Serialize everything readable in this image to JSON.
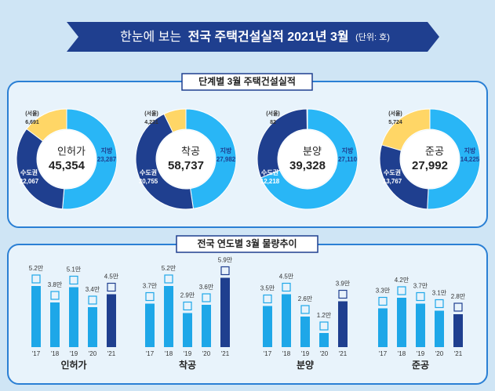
{
  "header": {
    "prefix": "한눈에 보는",
    "title": "전국 주택건설실적 2021년 3월",
    "unit": "(단위: 호)"
  },
  "sections": [
    {
      "title": "단계별 3월 주택건설실적"
    },
    {
      "title": "전국 연도별 3월 물량추이"
    }
  ],
  "chart_data": [
    {
      "type": "pie",
      "label": "인허가",
      "center_value": "45,354",
      "categories": [
        "지방",
        "수도권",
        "(서울)"
      ],
      "values": [
        23287,
        22067,
        6691
      ],
      "value_labels": [
        "23,287",
        "22,067",
        "6,691"
      ],
      "colors": [
        "#29b6f6",
        "#1f3f8f",
        "#ffd666"
      ]
    },
    {
      "type": "pie",
      "label": "착공",
      "center_value": "58,737",
      "categories": [
        "지방",
        "수도권",
        "(서울)"
      ],
      "values": [
        27982,
        30755,
        4231
      ],
      "value_labels": [
        "27,982",
        "30,755",
        "4,231"
      ],
      "colors": [
        "#29b6f6",
        "#1f3f8f",
        "#ffd666"
      ]
    },
    {
      "type": "pie",
      "label": "분양",
      "center_value": "39,328",
      "categories": [
        "지방",
        "수도권",
        "(서울)"
      ],
      "values": [
        27110,
        12218,
        82
      ],
      "value_labels": [
        "27,110",
        "12,218",
        "82"
      ],
      "colors": [
        "#29b6f6",
        "#1f3f8f",
        "#ffd666"
      ]
    },
    {
      "type": "pie",
      "label": "준공",
      "center_value": "27,992",
      "categories": [
        "지방",
        "수도권",
        "(서울)"
      ],
      "values": [
        14225,
        13767,
        5724
      ],
      "value_labels": [
        "14,225",
        "13,767",
        "5,724"
      ],
      "colors": [
        "#29b6f6",
        "#1f3f8f",
        "#ffd666"
      ]
    },
    {
      "type": "bar",
      "label": "인허가",
      "categories": [
        "'17",
        "'18",
        "'19",
        "'20",
        "'21"
      ],
      "values": [
        5.2,
        3.8,
        5.1,
        3.4,
        4.5
      ],
      "value_labels": [
        "5.2만",
        "3.8만",
        "5.1만",
        "3.4만",
        "4.5만"
      ],
      "colors": [
        "#1ea7e8",
        "#1ea7e8",
        "#1ea7e8",
        "#1ea7e8",
        "#1f3f8f"
      ]
    },
    {
      "type": "bar",
      "label": "착공",
      "categories": [
        "'17",
        "'18",
        "'19",
        "'20",
        "'21"
      ],
      "values": [
        3.7,
        5.2,
        2.9,
        3.6,
        5.9
      ],
      "value_labels": [
        "3.7만",
        "5.2만",
        "2.9만",
        "3.6만",
        "5.9만"
      ],
      "colors": [
        "#1ea7e8",
        "#1ea7e8",
        "#1ea7e8",
        "#1ea7e8",
        "#1f3f8f"
      ]
    },
    {
      "type": "bar",
      "label": "분양",
      "categories": [
        "'17",
        "'18",
        "'19",
        "'20",
        "'21"
      ],
      "values": [
        3.5,
        4.5,
        2.6,
        1.2,
        3.9
      ],
      "value_labels": [
        "3.5만",
        "4.5만",
        "2.6만",
        "1.2만",
        "3.9만"
      ],
      "colors": [
        "#1ea7e8",
        "#1ea7e8",
        "#1ea7e8",
        "#1ea7e8",
        "#1f3f8f"
      ]
    },
    {
      "type": "bar",
      "label": "준공",
      "categories": [
        "'17",
        "'18",
        "'19",
        "'20",
        "'21"
      ],
      "values": [
        3.3,
        4.2,
        3.7,
        3.1,
        2.8
      ],
      "value_labels": [
        "3.3만",
        "4.2만",
        "3.7만",
        "3.1만",
        "2.8만"
      ],
      "colors": [
        "#1ea7e8",
        "#1ea7e8",
        "#1ea7e8",
        "#1ea7e8",
        "#1f3f8f"
      ]
    }
  ]
}
